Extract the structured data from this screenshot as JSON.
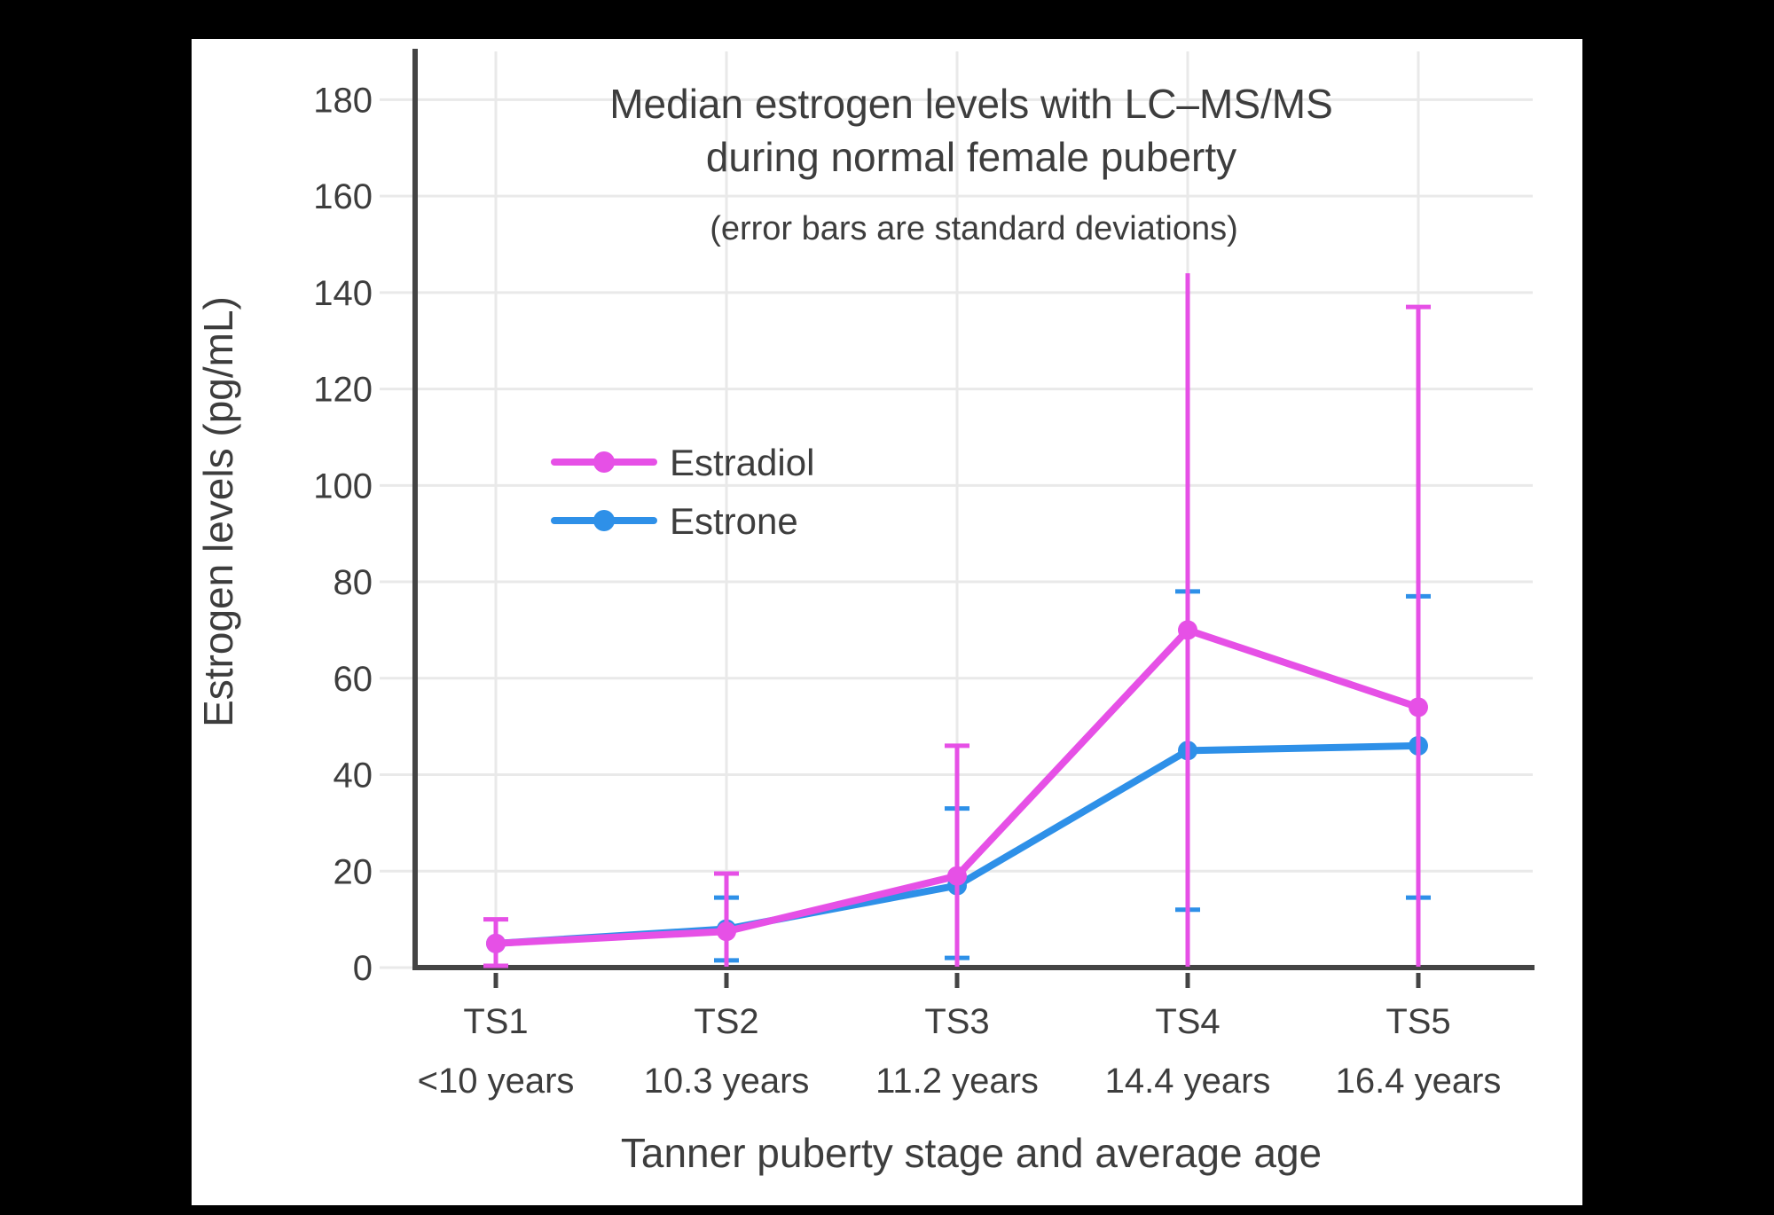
{
  "canvas": {
    "outer_background": "#000000",
    "chart_background": "#ffffff"
  },
  "chart_data": {
    "type": "line",
    "title": "Median estrogen levels with LC–MS/MS",
    "title_line2": "during normal female puberty",
    "subtitle": "(error bars are standard deviations)",
    "xlabel": "Tanner puberty stage and average age",
    "ylabel": "Estrogen levels (pg/mL)",
    "categories": [
      "TS1",
      "TS2",
      "TS3",
      "TS4",
      "TS5"
    ],
    "category_ages": [
      "<10 years",
      "10.3 years",
      "11.2 years",
      "14.4 years",
      "16.4 years"
    ],
    "yticks": [
      0,
      20,
      40,
      60,
      80,
      100,
      120,
      140,
      160,
      180
    ],
    "ylim": [
      0,
      190
    ],
    "grid": true,
    "legend_position": "inside upper-left",
    "error_bars": "standard deviations",
    "series": [
      {
        "name": "Estradiol",
        "color": "#e650e6",
        "values": [
          5,
          7.5,
          19,
          70,
          54
        ],
        "err_low": [
          0,
          0,
          0,
          0,
          0
        ],
        "err_high": [
          10,
          19.5,
          46,
          144,
          137
        ],
        "caps_high": [
          true,
          true,
          true,
          false,
          true
        ],
        "caps_low": [
          true,
          false,
          false,
          false,
          false
        ]
      },
      {
        "name": "Estrone",
        "color": "#2e90e8",
        "values": [
          5,
          8,
          17,
          45,
          46
        ],
        "err_low": [
          null,
          1.5,
          2,
          12,
          14.5
        ],
        "err_high": [
          null,
          14.5,
          33,
          78,
          77
        ],
        "caps_high": [
          false,
          true,
          true,
          true,
          true
        ],
        "caps_low": [
          false,
          true,
          true,
          true,
          true
        ]
      }
    ],
    "axis_color": "#444444",
    "grid_color": "#e9e9e9",
    "text_color": "#3d3d3d"
  }
}
